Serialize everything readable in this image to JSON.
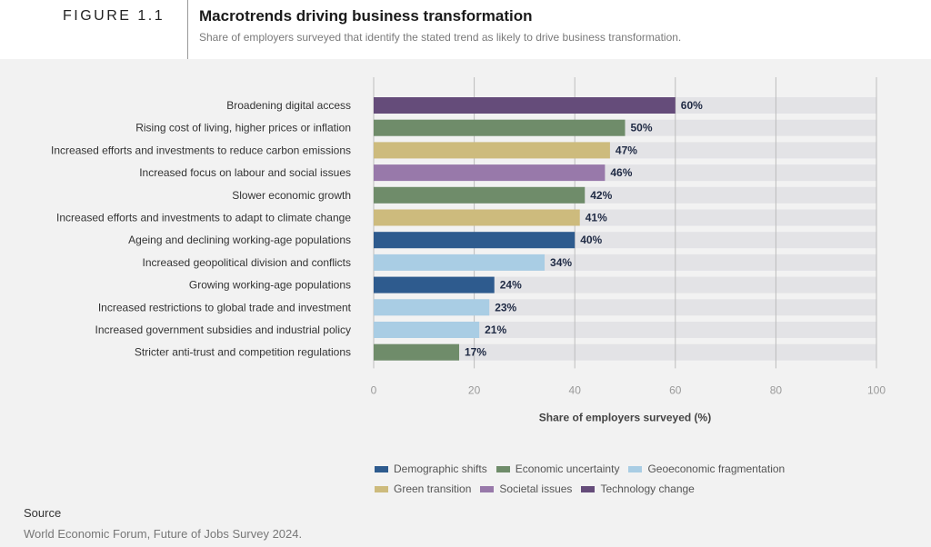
{
  "header": {
    "figure_label": "FIGURE 1.1",
    "title": "Macrotrends driving business transformation",
    "subtitle": "Share of employers surveyed that identify the stated trend as likely to drive business transformation."
  },
  "source": {
    "heading": "Source",
    "text": "World Economic Forum, Future of Jobs Survey 2024."
  },
  "legend": [
    {
      "name": "Demographic shifts",
      "color": "#2e5b8e"
    },
    {
      "name": "Economic uncertainty",
      "color": "#6f8c6a"
    },
    {
      "name": "Geoeconomic fragmentation",
      "color": "#a9cde4"
    },
    {
      "name": "Green transition",
      "color": "#cdbb7d"
    },
    {
      "name": "Societal issues",
      "color": "#9879aa"
    },
    {
      "name": "Technology change",
      "color": "#654c7a"
    }
  ],
  "chart_data": {
    "type": "bar",
    "orientation": "horizontal",
    "categories": [
      "Broadening digital access",
      "Rising cost of living, higher prices or inflation",
      "Increased efforts and investments to reduce carbon emissions",
      "Increased focus on labour and social issues",
      "Slower economic growth",
      "Increased efforts and investments to adapt to climate change",
      "Ageing and declining working-age populations",
      "Increased geopolitical division and conflicts",
      "Growing working-age populations",
      "Increased restrictions to global trade and investment",
      "Increased government subsidies and industrial policy",
      "Stricter anti-trust and competition regulations"
    ],
    "values": [
      60,
      50,
      47,
      46,
      42,
      41,
      40,
      34,
      24,
      23,
      21,
      17
    ],
    "value_labels": [
      "60%",
      "50%",
      "47%",
      "46%",
      "42%",
      "41%",
      "40%",
      "34%",
      "24%",
      "23%",
      "21%",
      "17%"
    ],
    "groups": [
      "Technology change",
      "Economic uncertainty",
      "Green transition",
      "Societal issues",
      "Economic uncertainty",
      "Green transition",
      "Demographic shifts",
      "Geoeconomic fragmentation",
      "Demographic shifts",
      "Geoeconomic fragmentation",
      "Geoeconomic fragmentation",
      "Economic uncertainty"
    ],
    "xlabel": "Share of employers surveyed (%)",
    "xlim": [
      0,
      100
    ],
    "xticks": [
      0,
      20,
      40,
      60,
      80,
      100
    ],
    "grid": true,
    "track_color": "#e3e3e6",
    "grid_color": "#bdbdbd"
  }
}
